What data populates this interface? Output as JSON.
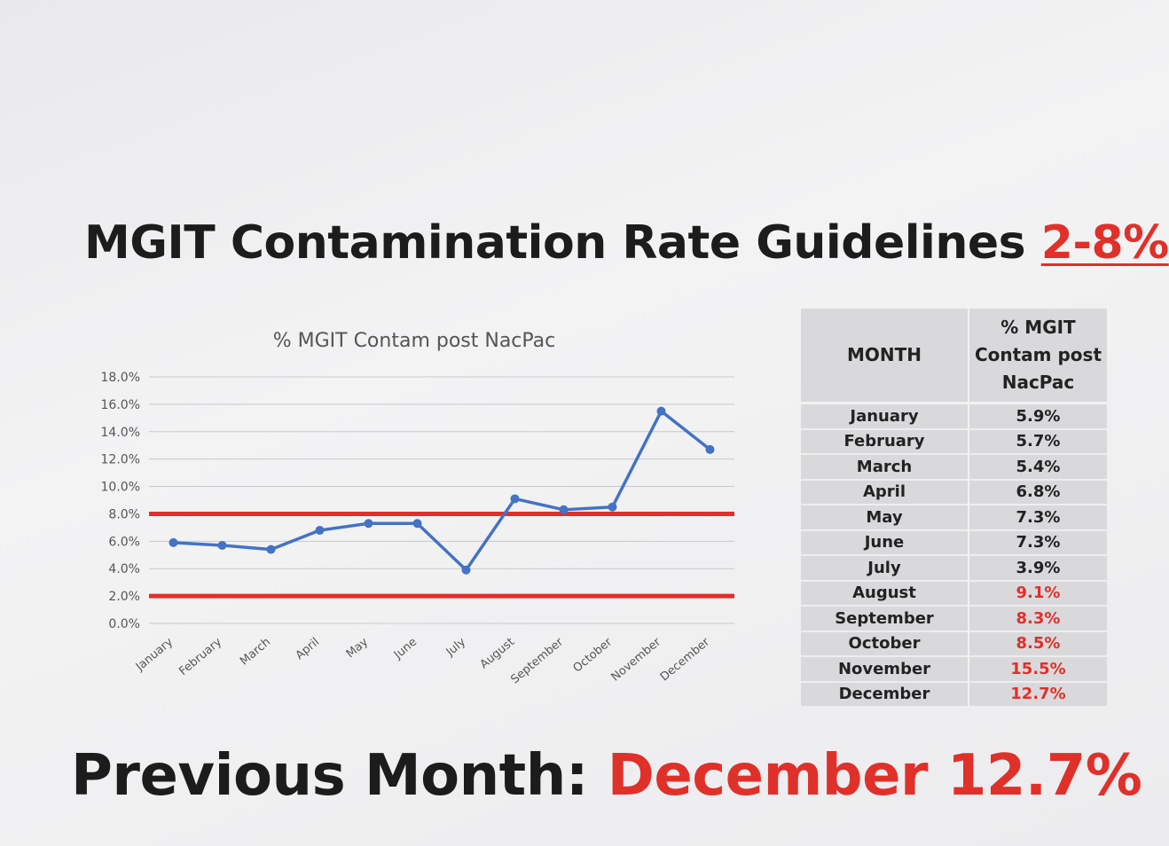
{
  "headline": {
    "text": "MGIT Contamination Rate Guidelines",
    "range": "2-8%"
  },
  "table": {
    "headers": [
      "MONTH",
      "% MGIT Contam post NacPac"
    ],
    "rows": [
      {
        "month": "January",
        "value": "5.9%",
        "over": false
      },
      {
        "month": "February",
        "value": "5.7%",
        "over": false
      },
      {
        "month": "March",
        "value": "5.4%",
        "over": false
      },
      {
        "month": "April",
        "value": "6.8%",
        "over": false
      },
      {
        "month": "May",
        "value": "7.3%",
        "over": false
      },
      {
        "month": "June",
        "value": "7.3%",
        "over": false
      },
      {
        "month": "July",
        "value": "3.9%",
        "over": false
      },
      {
        "month": "August",
        "value": "9.1%",
        "over": true
      },
      {
        "month": "September",
        "value": "8.3%",
        "over": true
      },
      {
        "month": "October",
        "value": "8.5%",
        "over": true
      },
      {
        "month": "November",
        "value": "15.5%",
        "over": true
      },
      {
        "month": "December",
        "value": "12.7%",
        "over": true
      }
    ]
  },
  "footer": {
    "label": "Previous Month:",
    "value": "December 12.7%"
  },
  "colors": {
    "series": "#4472c4",
    "threshold": "#e0302a",
    "grid": "#c9c9cc",
    "text": "#1c1c1c",
    "axis_text": "#555555"
  },
  "chart_data": {
    "type": "line",
    "title": "% MGIT Contam post NacPac",
    "categories": [
      "January",
      "February",
      "March",
      "April",
      "May",
      "June",
      "July",
      "August",
      "September",
      "October",
      "November",
      "December"
    ],
    "series": [
      {
        "values": [
          5.9,
          5.7,
          5.4,
          6.8,
          7.3,
          7.3,
          3.9,
          9.1,
          8.3,
          8.5,
          15.5,
          12.7
        ]
      }
    ],
    "thresholds": [
      8.0,
      2.0
    ],
    "ylim": [
      0,
      18
    ],
    "ytick_step": 2,
    "yticks": [
      "0.0%",
      "2.0%",
      "4.0%",
      "6.0%",
      "8.0%",
      "10.0%",
      "12.0%",
      "14.0%",
      "16.0%",
      "18.0%"
    ],
    "grid": true,
    "legend": "none",
    "xlabel": "",
    "ylabel": ""
  }
}
